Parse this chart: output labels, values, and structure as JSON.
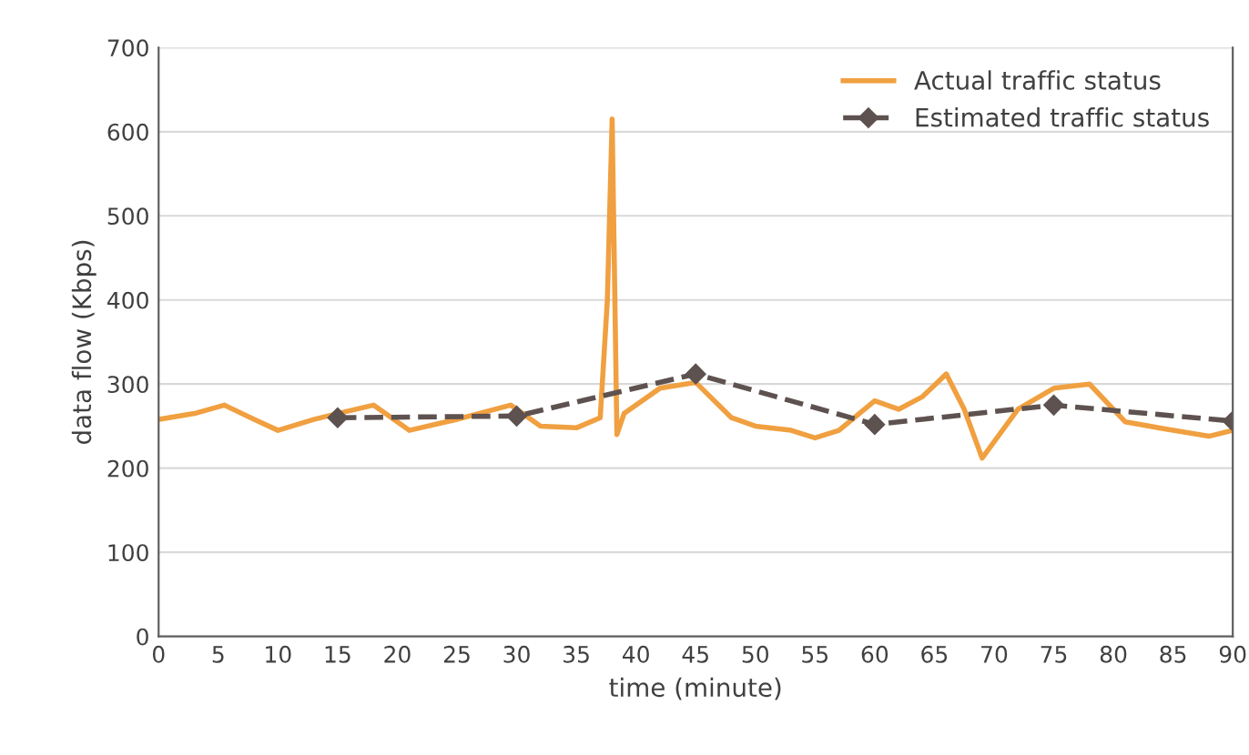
{
  "chart_data": {
    "type": "line",
    "xlabel": "time (minute)",
    "ylabel": "data flow (Kbps)",
    "xlim": [
      0,
      90
    ],
    "xticks": [
      0,
      5,
      10,
      15,
      20,
      25,
      30,
      35,
      40,
      45,
      50,
      55,
      60,
      65,
      70,
      75,
      80,
      85,
      90
    ],
    "ylim": [
      0,
      700
    ],
    "yticks": [
      0,
      100,
      200,
      300,
      400,
      500,
      600,
      700
    ],
    "grid": "y",
    "legend": "top right",
    "series": [
      {
        "name": "Actual traffic status",
        "color": "#f0a040",
        "line_style": "solid",
        "marker": "none",
        "x": [
          0,
          3,
          5.5,
          8,
          10,
          13,
          15,
          18,
          21,
          25,
          29.5,
          32,
          35,
          37,
          37.6,
          38,
          38.4,
          39,
          42,
          45,
          48,
          50,
          53,
          55,
          57,
          60,
          62,
          64,
          66,
          67.5,
          69,
          72,
          75,
          78,
          81,
          85,
          88,
          90
        ],
        "values": [
          258,
          265,
          275,
          258,
          245,
          258,
          265,
          275,
          245,
          258,
          275,
          250,
          248,
          260,
          400,
          615,
          240,
          265,
          295,
          302,
          260,
          250,
          245,
          236,
          245,
          280,
          270,
          285,
          312,
          270,
          212,
          270,
          295,
          300,
          255,
          245,
          238,
          245
        ]
      },
      {
        "name": "Estimated traffic status",
        "color": "#5e5250",
        "line_style": "dashed",
        "marker": "diamond",
        "x": [
          15,
          30,
          45,
          60,
          75,
          90
        ],
        "values": [
          260,
          262,
          312,
          252,
          275,
          256
        ]
      }
    ]
  }
}
